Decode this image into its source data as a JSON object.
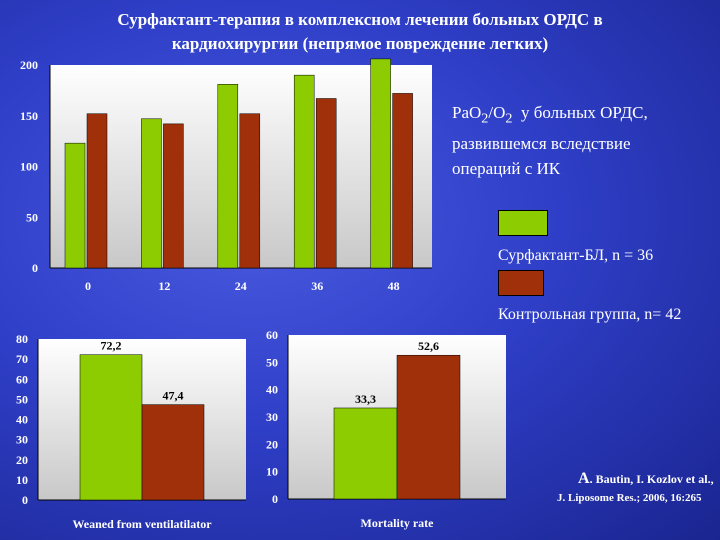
{
  "slide": {
    "title_line1": "Сурфактант-терапия в комплексном лечении больных  ОРДС в",
    "title_line2": "кардиохирургии  (непрямое повреждение легких)"
  },
  "annotation": {
    "line1_pre": "PaO",
    "line1_sub1": "2",
    "line1_mid": "/O",
    "line1_sub2": "2",
    "line1_post": "  у больных ОРДС,",
    "line2": "развившемся вследствие",
    "line3": "операций с ИК"
  },
  "legend": [
    {
      "label": "Сурфактант-БЛ, n = 36",
      "color": "#8ccc00"
    },
    {
      "label": "Контрольная группа, n= 42",
      "color": "#a0300a"
    }
  ],
  "citation": {
    "author_initial": "A",
    "author_rest": ". Bautin, I. Kozlov et al.,",
    "journal": "J. Liposome Res.; 2006, 16:265"
  },
  "colors": {
    "surfactant": "#8ccc00",
    "control": "#a0300a",
    "plot_bg_top": "#ffffff",
    "plot_bg_bottom": "#c8c8c8"
  },
  "chart_data": [
    {
      "type": "bar",
      "categories": [
        "0",
        "12",
        "24",
        "36",
        "48"
      ],
      "series": [
        {
          "name": "Сурфактант-БЛ, n = 36",
          "values": [
            123,
            147,
            181,
            190,
            206
          ]
        },
        {
          "name": "Контрольная группа, n= 42",
          "values": [
            152,
            142,
            152,
            167,
            172
          ]
        }
      ],
      "ylim": [
        0,
        200
      ],
      "yticks": [
        "0",
        "50",
        "100",
        "150",
        "200"
      ],
      "grid": false
    },
    {
      "type": "bar",
      "categories": [
        "Weaned from ventilatilator"
      ],
      "series": [
        {
          "name": "Сурфактант-БЛ, n = 36",
          "values": [
            72.2
          ]
        },
        {
          "name": "Контрольная группа, n= 42",
          "values": [
            47.4
          ]
        }
      ],
      "data_labels": [
        "72,2",
        "47,4"
      ],
      "xlabel": "Weaned from ventilatilator",
      "ylim": [
        0,
        80
      ],
      "yticks": [
        "0",
        "10",
        "20",
        "30",
        "40",
        "50",
        "60",
        "70",
        "80"
      ],
      "grid": false
    },
    {
      "type": "bar",
      "categories": [
        "Mortality rate"
      ],
      "series": [
        {
          "name": "Сурфактант-БЛ, n = 36",
          "values": [
            33.3
          ]
        },
        {
          "name": "Контрольная группа, n= 42",
          "values": [
            52.6
          ]
        }
      ],
      "data_labels": [
        "33,3",
        "52,6"
      ],
      "xlabel": "Mortality rate",
      "ylim": [
        0,
        60
      ],
      "yticks": [
        "0",
        "10",
        "20",
        "30",
        "40",
        "50",
        "60"
      ],
      "grid": false
    }
  ]
}
